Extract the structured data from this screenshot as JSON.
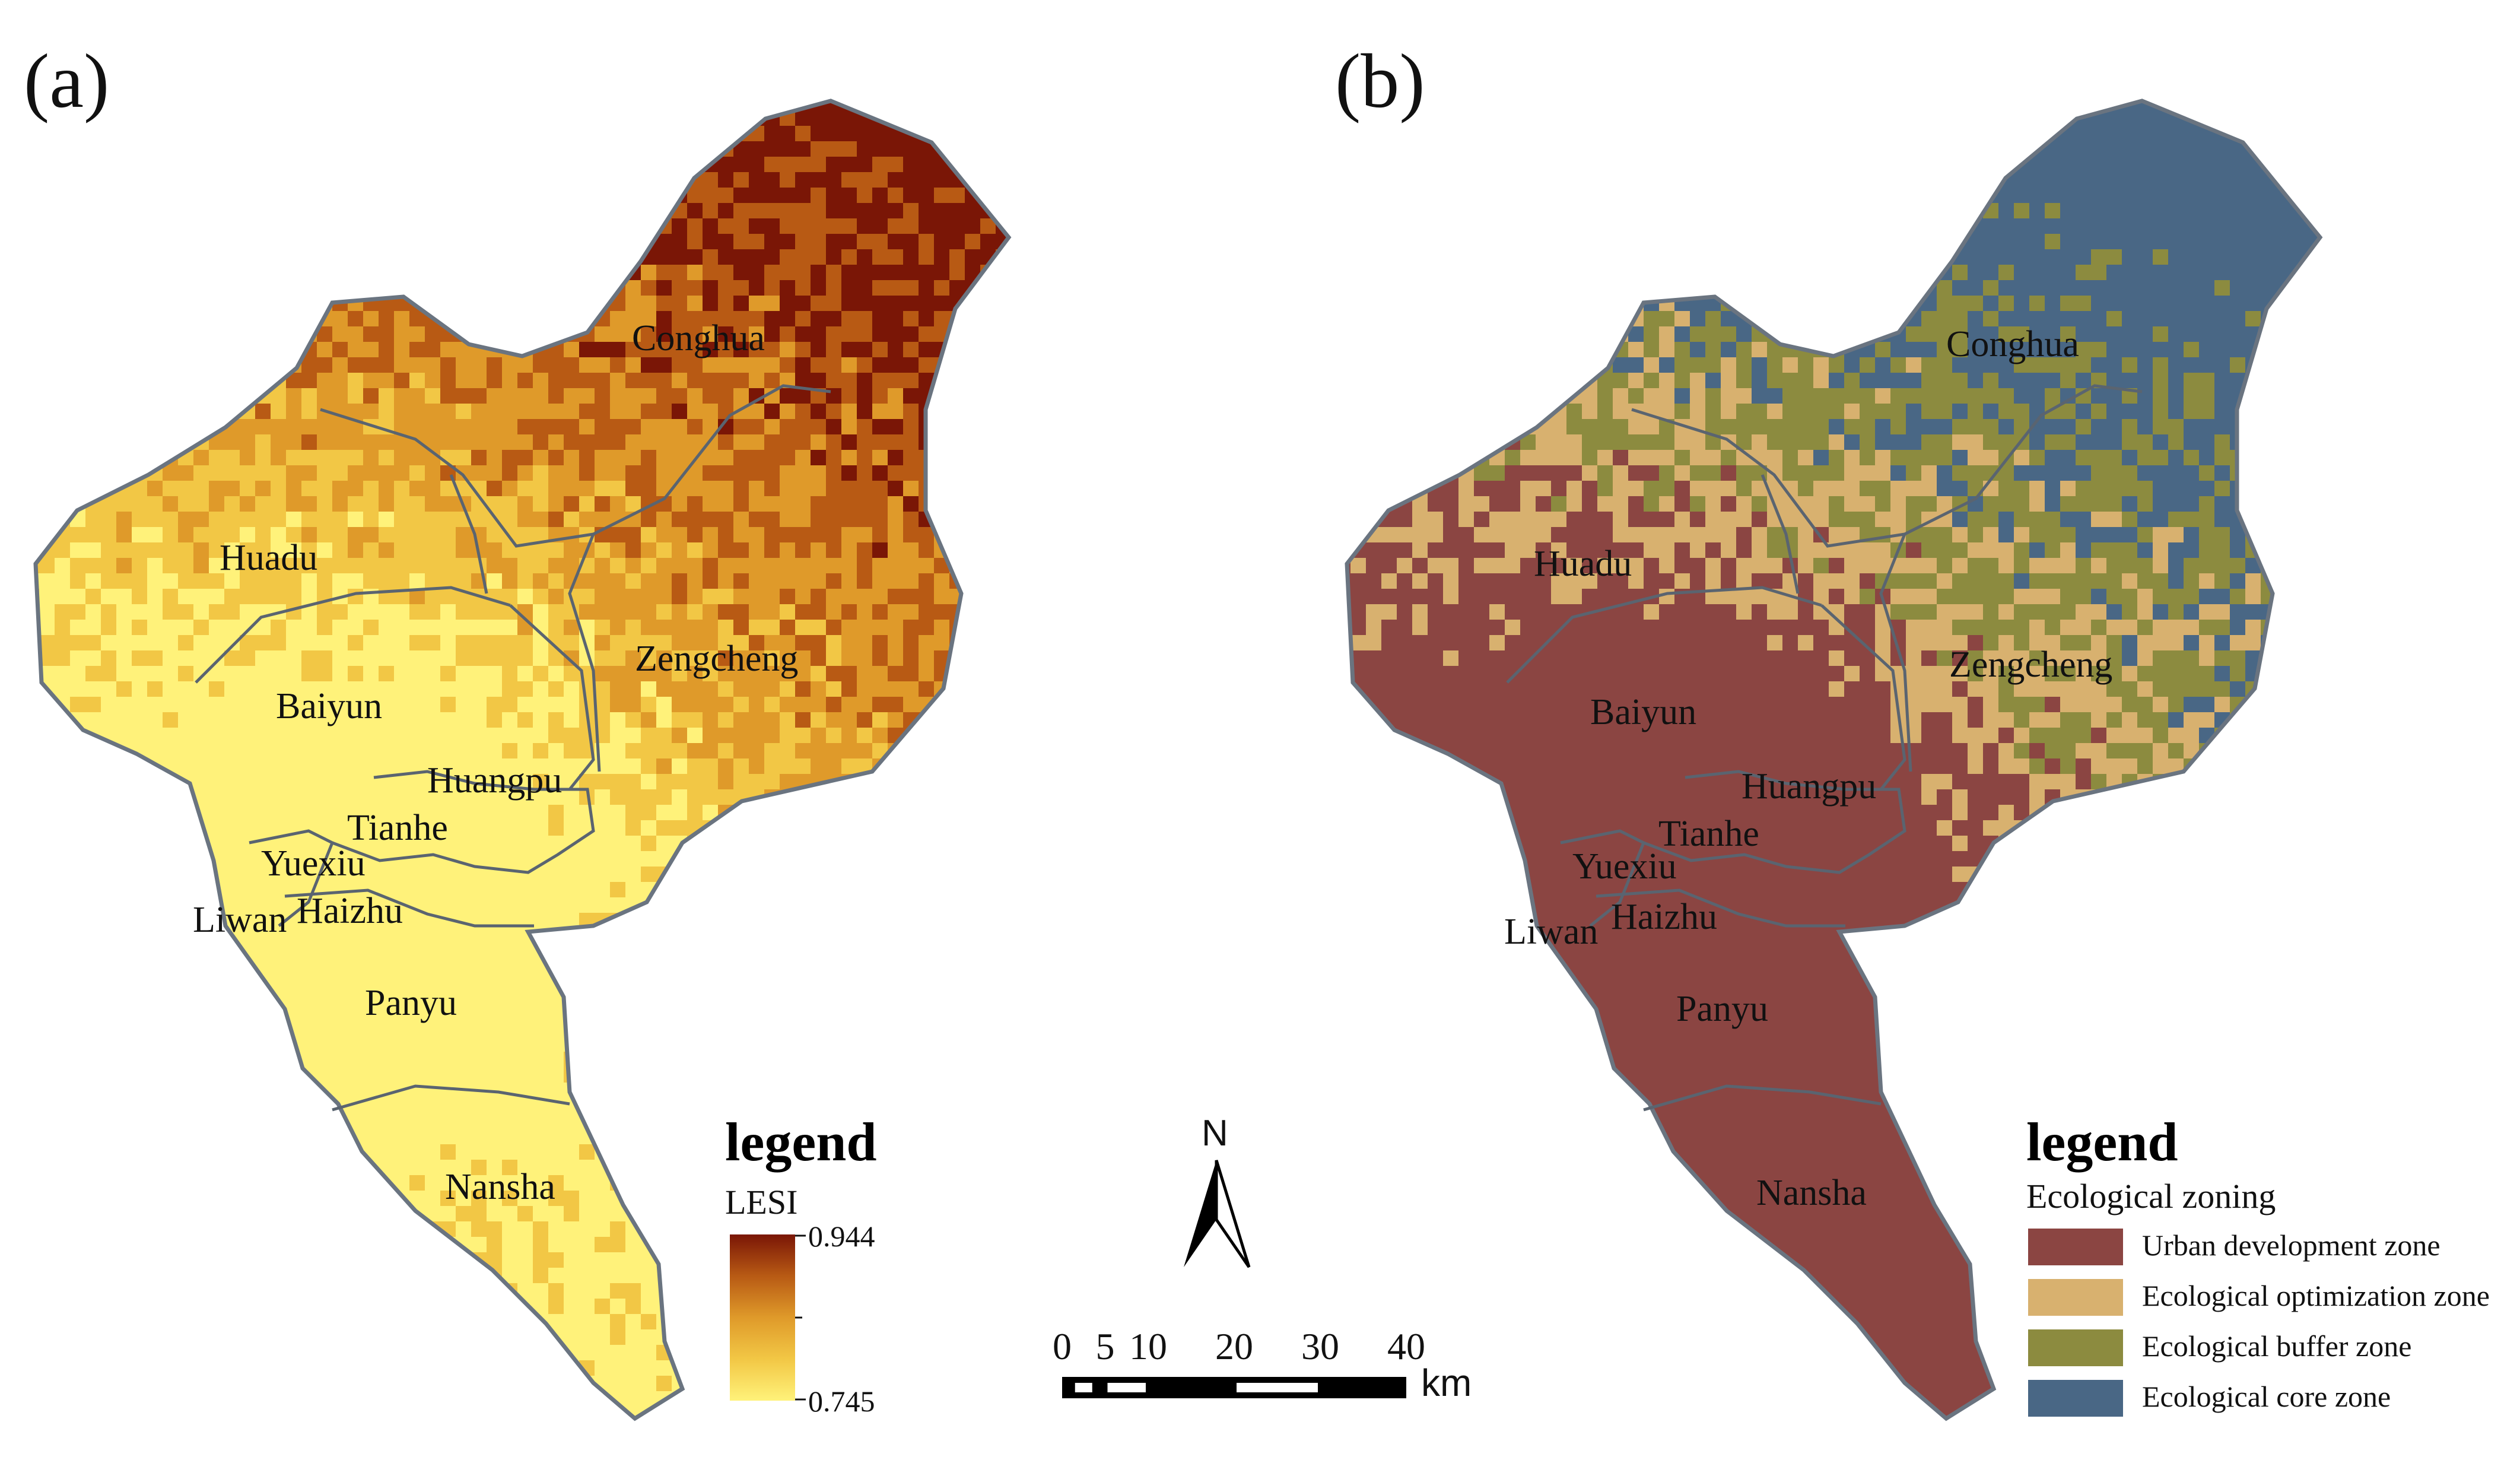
{
  "panels": {
    "a": {
      "label": "(a)",
      "districts": [
        "Conghua",
        "Huadu",
        "Zengcheng",
        "Baiyun",
        "Huangpu",
        "Tianhe",
        "Yuexiu",
        "Liwan",
        "Haizhu",
        "Panyu",
        "Nansha"
      ],
      "legend": {
        "title": "legend",
        "subtitle": "LESI",
        "max_label": "0.944",
        "min_label": "0.745",
        "max_value": 0.944,
        "min_value": 0.745,
        "ramp_colors": [
          "#fff27a",
          "#f2c745",
          "#df9a2a",
          "#b85a14",
          "#7a1606"
        ]
      }
    },
    "b": {
      "label": "(b)",
      "districts": [
        "Conghua",
        "Huadu",
        "Zengcheng",
        "Baiyun",
        "Huangpu",
        "Tianhe",
        "Yuexiu",
        "Liwan",
        "Haizhu",
        "Panyu",
        "Nansha"
      ],
      "legend": {
        "title": "legend",
        "subtitle": "Ecological zoning",
        "items": [
          {
            "label": "Urban development zone",
            "color": "#8b4542"
          },
          {
            "label": "Ecological optimization zone",
            "color": "#d8b16f"
          },
          {
            "label": "Ecological buffer zone",
            "color": "#8c8b3f"
          },
          {
            "label": "Ecological core zone",
            "color": "#496785"
          }
        ]
      }
    }
  },
  "north_arrow": {
    "label": "N"
  },
  "scale_bar": {
    "ticks": [
      "0",
      "5",
      "10",
      "20",
      "30",
      "40"
    ],
    "unit": "km"
  }
}
